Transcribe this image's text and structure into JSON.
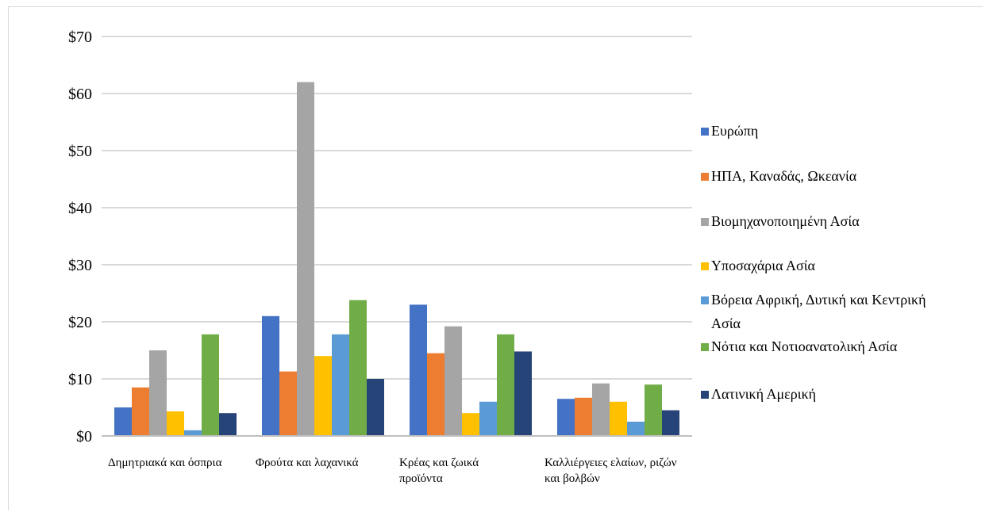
{
  "chart_data": {
    "type": "bar",
    "categories": [
      [
        "Δημητριακά και όσπρια"
      ],
      [
        "Φρούτα και λαχανικά"
      ],
      [
        "Κρέας και ζωικά",
        "προϊόντα"
      ],
      [
        "Καλλιέργειες ελαίων, ριζών",
        "και βολβών"
      ]
    ],
    "series": [
      {
        "name": "Ευρώπη",
        "color": "#4472C4",
        "values": [
          5.0,
          21.0,
          23.0,
          6.5
        ]
      },
      {
        "name": "ΗΠΑ, Καναδάς, Ωκεανία",
        "color": "#ED7D31",
        "values": [
          8.5,
          11.3,
          14.5,
          6.7
        ]
      },
      {
        "name": "Βιομηχανοποιημένη Ασία",
        "color": "#A5A5A5",
        "values": [
          15.0,
          62.0,
          19.2,
          9.2
        ]
      },
      {
        "name": "Υποσαχάρια Ασία",
        "color": "#FFC000",
        "values": [
          4.3,
          14.0,
          4.0,
          6.0
        ]
      },
      {
        "name": [
          "Βόρεια Αφρική, Δυτική και Κεντρική",
          "Ασία"
        ],
        "color": "#5B9BD5",
        "values": [
          1.0,
          17.8,
          6.0,
          2.5
        ]
      },
      {
        "name": "Νότια και Νοτιοανατολική Ασία",
        "color": "#70AD47",
        "values": [
          17.8,
          23.8,
          17.8,
          9.0
        ]
      },
      {
        "name": "Λατινική Αμερική",
        "color": "#264478",
        "values": [
          4.0,
          10.0,
          14.8,
          4.5
        ]
      }
    ],
    "y_ticks": [
      "$0",
      "$10",
      "$20",
      "$30",
      "$40",
      "$50",
      "$60",
      "$70"
    ],
    "ylim": [
      0,
      70
    ],
    "grid": true,
    "legend_position": "right"
  }
}
